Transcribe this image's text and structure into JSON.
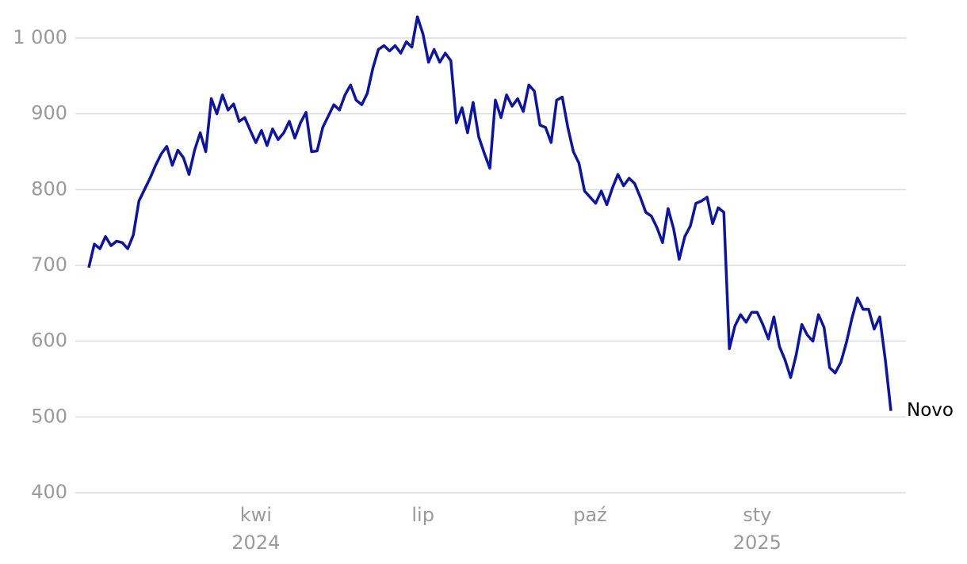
{
  "chart_data": {
    "type": "line",
    "x": [
      "2024-01",
      "2024-01",
      "2024-01",
      "2024-01",
      "2024-01",
      "2024-01",
      "2024-01",
      "2024-01",
      "2024-01",
      "2024-01",
      "2024-02",
      "2024-02",
      "2024-02",
      "2024-02",
      "2024-02",
      "2024-02",
      "2024-02",
      "2024-02",
      "2024-02",
      "2024-02",
      "2024-03",
      "2024-03",
      "2024-03",
      "2024-03",
      "2024-03",
      "2024-03",
      "2024-03",
      "2024-03",
      "2024-03",
      "2024-03",
      "2024-04",
      "2024-04",
      "2024-04",
      "2024-04",
      "2024-04",
      "2024-04",
      "2024-04",
      "2024-04",
      "2024-04",
      "2024-04",
      "2024-05",
      "2024-05",
      "2024-05",
      "2024-05",
      "2024-05",
      "2024-05",
      "2024-05",
      "2024-05",
      "2024-05",
      "2024-05",
      "2024-06",
      "2024-06",
      "2024-06",
      "2024-06",
      "2024-06",
      "2024-06",
      "2024-06",
      "2024-06",
      "2024-06",
      "2024-06",
      "2024-07",
      "2024-07",
      "2024-07",
      "2024-07",
      "2024-07",
      "2024-07",
      "2024-07",
      "2024-07",
      "2024-07",
      "2024-07",
      "2024-08",
      "2024-08",
      "2024-08",
      "2024-08",
      "2024-08",
      "2024-08",
      "2024-08",
      "2024-08",
      "2024-08",
      "2024-08",
      "2024-09",
      "2024-09",
      "2024-09",
      "2024-09",
      "2024-09",
      "2024-09",
      "2024-09",
      "2024-09",
      "2024-09",
      "2024-09",
      "2024-10",
      "2024-10",
      "2024-10",
      "2024-10",
      "2024-10",
      "2024-10",
      "2024-10",
      "2024-10",
      "2024-10",
      "2024-10",
      "2024-11",
      "2024-11",
      "2024-11",
      "2024-11",
      "2024-11",
      "2024-11",
      "2024-11",
      "2024-11",
      "2024-11",
      "2024-11",
      "2024-12",
      "2024-12",
      "2024-12",
      "2024-12",
      "2024-12",
      "2024-12",
      "2024-12",
      "2024-12",
      "2024-12",
      "2024-12",
      "2025-01",
      "2025-01",
      "2025-01",
      "2025-01",
      "2025-01",
      "2025-01",
      "2025-01",
      "2025-01",
      "2025-01",
      "2025-01",
      "2025-02",
      "2025-02",
      "2025-02",
      "2025-02",
      "2025-02",
      "2025-02",
      "2025-02",
      "2025-02",
      "2025-02",
      "2025-02",
      "2025-03",
      "2025-03",
      "2025-03",
      "2025-03",
      "2025-03"
    ],
    "series": [
      {
        "name": "Novo",
        "color": "#0b14a8",
        "values": [
          697,
          728,
          722,
          738,
          726,
          732,
          730,
          722,
          740,
          785,
          800,
          815,
          832,
          847,
          857,
          832,
          852,
          842,
          820,
          852,
          875,
          850,
          920,
          900,
          925,
          905,
          913,
          890,
          895,
          878,
          862,
          878,
          858,
          880,
          866,
          875,
          890,
          868,
          888,
          902,
          850,
          851,
          882,
          897,
          912,
          905,
          925,
          938,
          918,
          912,
          927,
          960,
          985,
          990,
          983,
          990,
          980,
          995,
          988,
          1028,
          1005,
          968,
          985,
          968,
          980,
          970,
          888,
          908,
          875,
          915,
          870,
          848,
          828,
          918,
          895,
          925,
          910,
          920,
          903,
          938,
          930,
          885,
          882,
          862,
          918,
          922,
          882,
          850,
          835,
          798,
          790,
          782,
          798,
          780,
          802,
          820,
          805,
          815,
          808,
          790,
          770,
          765,
          750,
          730,
          775,
          748,
          708,
          738,
          752,
          782,
          785,
          790,
          755,
          776,
          770,
          590,
          620,
          635,
          625,
          638,
          638,
          622,
          603,
          632,
          593,
          575,
          552,
          582,
          622,
          608,
          600,
          635,
          618,
          565,
          558,
          572,
          598,
          630,
          657,
          642,
          642,
          616,
          632,
          575,
          508
        ]
      }
    ],
    "xticks": [
      {
        "value": "2024-04",
        "label": "kwi 2024"
      },
      {
        "value": "2024-07",
        "label": "lip"
      },
      {
        "value": "2024-10",
        "label": "paź"
      },
      {
        "value": "2025-01",
        "label": "sty 2025"
      }
    ],
    "ylim": [
      400,
      1000
    ],
    "yticks": [
      {
        "value": 400,
        "label": "400"
      },
      {
        "value": 500,
        "label": "500"
      },
      {
        "value": 600,
        "label": "600"
      },
      {
        "value": 700,
        "label": "700"
      },
      {
        "value": 800,
        "label": "800"
      },
      {
        "value": 900,
        "label": "900"
      },
      {
        "value": 1000,
        "label": "1 000"
      }
    ],
    "grid": true
  }
}
